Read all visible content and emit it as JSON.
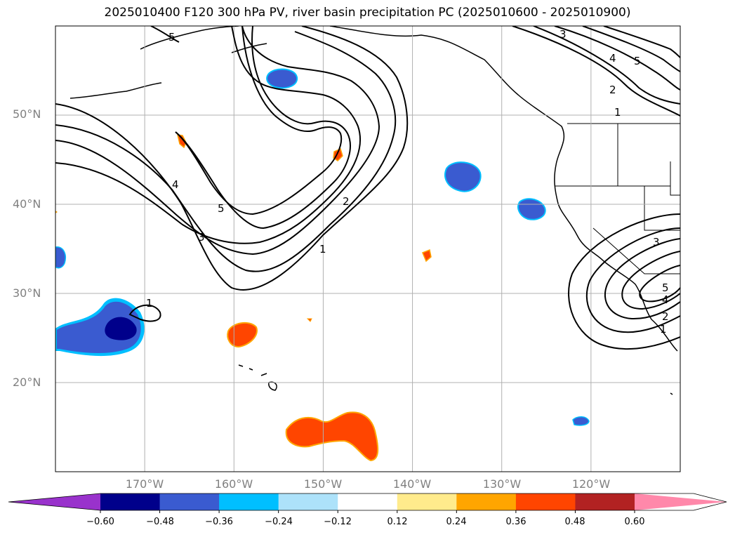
{
  "title": "2025010400 F120 300 hPa PV, river basin precipitation PC (2025010600 - 2025010900)",
  "map": {
    "lat_range": [
      10,
      60
    ],
    "lon_range": [
      -180,
      -110
    ],
    "lat_gridlines": [
      20,
      30,
      40,
      50
    ],
    "lon_gridlines": [
      -170,
      -160,
      -150,
      -140,
      -130,
      -120
    ],
    "lat_labels": [
      "20°N",
      "30°N",
      "40°N",
      "50°N"
    ],
    "lon_labels": [
      "170°W",
      "160°W",
      "150°W",
      "140°W",
      "130°W",
      "120°W"
    ],
    "grid_color": "#b0b0b0",
    "label_color": "#808080",
    "contour_labels": [
      "1",
      "2",
      "3",
      "4",
      "5"
    ],
    "contour_field": "300 hPa PV",
    "shading_field": "river basin precipitation PC"
  },
  "colorbar": {
    "colors": [
      "#9932cc",
      "#00008b",
      "#3a5bd0",
      "#00bfff",
      "#ade2fa",
      "#ffffff",
      "#ffeb8c",
      "#ffa500",
      "#ff4500",
      "#b22222",
      "#ff88aa"
    ],
    "tick_labels": [
      "−0.60",
      "−0.48",
      "−0.36",
      "−0.24",
      "−0.12",
      "0.12",
      "0.24",
      "0.36",
      "0.48",
      "0.60"
    ],
    "extend": "both"
  }
}
